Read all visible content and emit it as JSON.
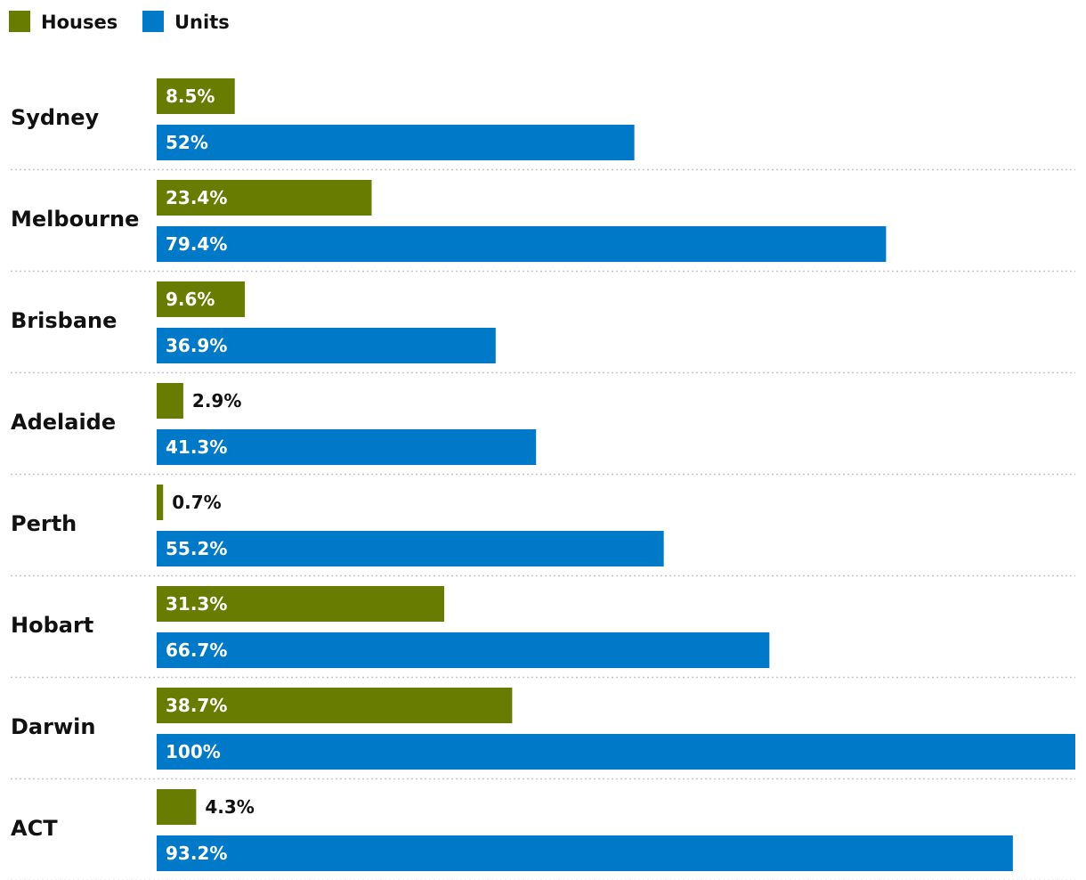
{
  "chart_data": {
    "type": "bar",
    "orientation": "horizontal",
    "categories": [
      "Sydney",
      "Melbourne",
      "Brisbane",
      "Adelaide",
      "Perth",
      "Hobart",
      "Darwin",
      "ACT"
    ],
    "series": [
      {
        "name": "Houses",
        "color": "#677c00",
        "values": [
          8.5,
          23.4,
          9.6,
          2.9,
          0.7,
          31.3,
          38.7,
          4.3
        ],
        "labels": [
          "8.5%",
          "23.4%",
          "9.6%",
          "2.9%",
          "0.7%",
          "31.3%",
          "38.7%",
          "4.3%"
        ]
      },
      {
        "name": "Units",
        "color": "#0079c8",
        "values": [
          52,
          79.4,
          36.9,
          41.3,
          55.2,
          66.7,
          100,
          93.2
        ],
        "labels": [
          "52%",
          "79.4%",
          "36.9%",
          "41.3%",
          "55.2%",
          "66.7%",
          "100%",
          "93.2%"
        ]
      }
    ],
    "xlim": [
      0,
      100
    ],
    "legend": "top-left",
    "grid": false,
    "title": "",
    "xlabel": "",
    "ylabel": ""
  }
}
